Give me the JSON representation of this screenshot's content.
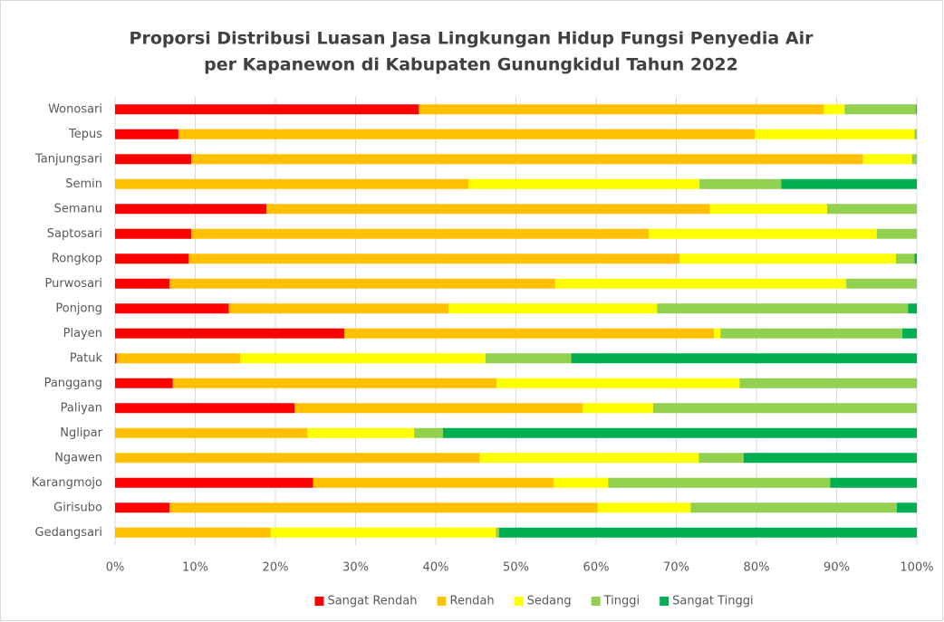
{
  "chart_data": {
    "type": "stacked-bar-horizontal",
    "title": "Proporsi Distribusi Luasan Jasa Lingkungan Hidup Fungsi Penyedia Air",
    "subtitle": "per Kapanewon di Kabupaten Gunungkidul Tahun 2022",
    "categories": [
      "Wonosari",
      "Tepus",
      "Tanjungsari",
      "Semin",
      "Semanu",
      "Saptosari",
      "Rongkop",
      "Purwosari",
      "Ponjong",
      "Playen",
      "Patuk",
      "Panggang",
      "Paliyan",
      "Nglipar",
      "Ngawen",
      "Karangmojo",
      "Girisubo",
      "Gedangsari"
    ],
    "series": [
      {
        "name": "Sangat Rendah",
        "color": "#ff0000",
        "values": [
          37.9,
          7.9,
          9.5,
          0,
          18.9,
          9.5,
          9.2,
          6.8,
          14.2,
          28.6,
          0.2,
          7.2,
          22.4,
          0,
          0,
          24.7,
          6.8,
          0
        ]
      },
      {
        "name": "Rendah",
        "color": "#ffc000",
        "values": [
          50.5,
          71.9,
          83.8,
          44.1,
          55.3,
          57.1,
          61.2,
          48.1,
          27.4,
          46.1,
          15.4,
          40.4,
          35.9,
          24.0,
          45.5,
          30.0,
          53.4,
          19.4
        ]
      },
      {
        "name": "Sedang",
        "color": "#ffff00",
        "values": [
          2.6,
          19.9,
          6.1,
          28.8,
          14.6,
          28.4,
          27.0,
          36.3,
          26.0,
          0.8,
          30.6,
          30.3,
          8.8,
          13.3,
          27.3,
          6.8,
          11.6,
          28.1
        ]
      },
      {
        "name": "Tinggi",
        "color": "#92d050",
        "values": [
          8.9,
          0.3,
          0.6,
          10.2,
          11.2,
          5.0,
          2.3,
          8.8,
          31.3,
          22.7,
          10.7,
          22.1,
          32.9,
          3.6,
          5.6,
          27.7,
          25.7,
          0.4
        ]
      },
      {
        "name": "Sangat Tinggi",
        "color": "#00b050",
        "values": [
          0.1,
          0,
          0,
          16.9,
          0,
          0,
          0.3,
          0,
          1.1,
          1.8,
          43.1,
          0,
          0,
          59.1,
          21.6,
          10.8,
          2.5,
          52.1
        ]
      }
    ],
    "xlim": [
      0,
      100
    ],
    "xticks": [
      {
        "value": 0,
        "label": "0%"
      },
      {
        "value": 10,
        "label": "10%"
      },
      {
        "value": 20,
        "label": "20%"
      },
      {
        "value": 30,
        "label": "30%"
      },
      {
        "value": 40,
        "label": "40%"
      },
      {
        "value": 50,
        "label": "50%"
      },
      {
        "value": 60,
        "label": "60%"
      },
      {
        "value": 70,
        "label": "70%"
      },
      {
        "value": 80,
        "label": "80%"
      },
      {
        "value": 90,
        "label": "90%"
      },
      {
        "value": 100,
        "label": "100%"
      }
    ],
    "grid": true,
    "legend": "bottom"
  }
}
